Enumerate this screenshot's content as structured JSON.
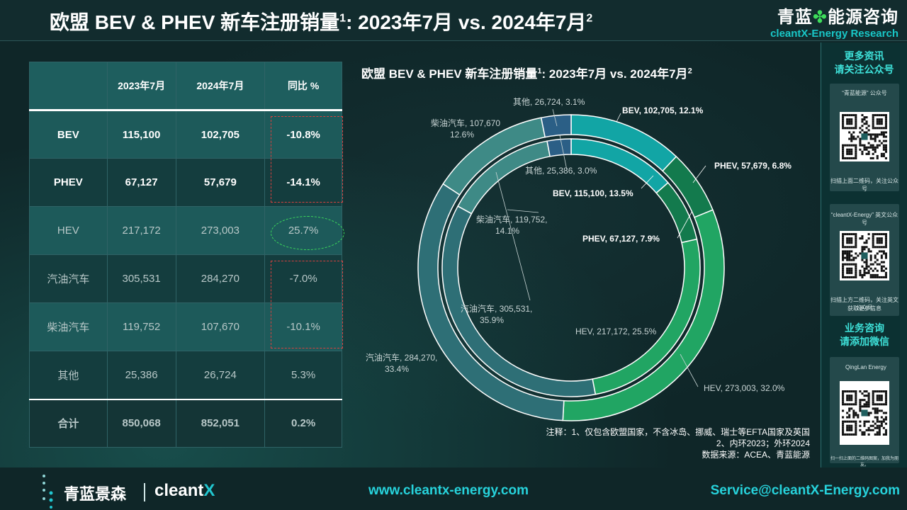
{
  "header": {
    "title": "欧盟 BEV & PHEV 新车注册销量",
    "title_sup1": "1",
    "title_tail": ": 2023年7月 vs. 2024年7月",
    "title_sup2": "2",
    "brand_cn_left": "青蓝",
    "brand_cn_right": "能源咨询",
    "brand_en": "cleantX-Energy Research"
  },
  "table": {
    "headers": [
      "",
      "2023年7月",
      "2024年7月",
      "同比 %"
    ],
    "rows": [
      {
        "cat": "BEV",
        "v2023": "115,100",
        "v2024": "102,705",
        "yoy": "-10.8%"
      },
      {
        "cat": "PHEV",
        "v2023": "67,127",
        "v2024": "57,679",
        "yoy": "-14.1%"
      },
      {
        "cat": "HEV",
        "v2023": "217,172",
        "v2024": "273,003",
        "yoy": "25.7%"
      },
      {
        "cat": "汽油汽车",
        "v2023": "305,531",
        "v2024": "284,270",
        "yoy": "-7.0%"
      },
      {
        "cat": "柴油汽车",
        "v2023": "119,752",
        "v2024": "107,670",
        "yoy": "-10.1%"
      },
      {
        "cat": "其他",
        "v2023": "25,386",
        "v2024": "26,724",
        "yoy": "5.3%"
      },
      {
        "cat": "合计",
        "v2023": "850,068",
        "v2024": "852,051",
        "yoy": "0.2%"
      }
    ]
  },
  "chart_data": {
    "type": "pie",
    "title": "欧盟 BEV & PHEV 新车注册销量",
    "title_sup1": "1",
    "title_tail": ": 2023年7月 vs. 2024年7月",
    "title_sup2": "2",
    "categories": [
      "BEV",
      "PHEV",
      "HEV",
      "汽油汽车",
      "柴油汽车",
      "其他"
    ],
    "colors": [
      "#12a5a5",
      "#137a4d",
      "#21a563",
      "#2e6f76",
      "#3e8a86",
      "#2b5f86"
    ],
    "series": [
      {
        "ring": "inner",
        "values": [
          115100,
          67127,
          217172,
          305531,
          119752,
          25386
        ],
        "labels": [
          "BEV, 115,100, 13.5%",
          "PHEV, 67,127, 7.9%",
          "HEV, 217,172, 25.5%",
          "汽油汽车, 305,531,",
          "柴油汽车, 119,752,",
          "其他, 25,386, 3.0%"
        ],
        "labels2": [
          "",
          "",
          "",
          "35.9%",
          "14.1%",
          ""
        ]
      },
      {
        "ring": "outer",
        "values": [
          102705,
          57679,
          273003,
          284270,
          107670,
          26724
        ],
        "labels": [
          "BEV, 102,705, 12.1%",
          "PHEV, 57,679, 6.8%",
          "HEV, 273,003, 32.0%",
          "汽油汽车, 284,270,",
          "柴油汽车, 107,670",
          "其他, 26,724, 3.1%"
        ],
        "labels2": [
          "",
          "",
          "",
          "33.4%",
          "12.6%",
          ""
        ]
      }
    ],
    "notes": [
      "注释：1、仅包含欧盟国家，不含冰岛、挪威、瑞士等EFTA国家及英国",
      "2、内环2023；外环2024",
      "数据来源：ACEA、青蓝能源"
    ]
  },
  "sidebar": {
    "top_head_1": "更多资讯",
    "top_head_2": "请关注公众号",
    "card1_title": "“青蓝能源” 公众号",
    "card1_caption": "扫描上面二维码，关注公众号",
    "card2_title": "“cleantX-Energy” 英文公众号",
    "card2_caption_1": "扫描上方二维码，关注英文公众号",
    "card2_caption_2": "获取更多信息",
    "mid_head_1": "业务咨询",
    "mid_head_2": "请添加微信",
    "card3_name": "QingLan Energy",
    "card3_caption": "扫一扫上面的二维码图案，加我为朋友。"
  },
  "footer": {
    "logo_cn": "青蓝景森",
    "logo_en": "cleant",
    "logo_en_x": "X",
    "website": "www.cleantx-energy.com",
    "email": "Service@cleantX-Energy.com"
  }
}
